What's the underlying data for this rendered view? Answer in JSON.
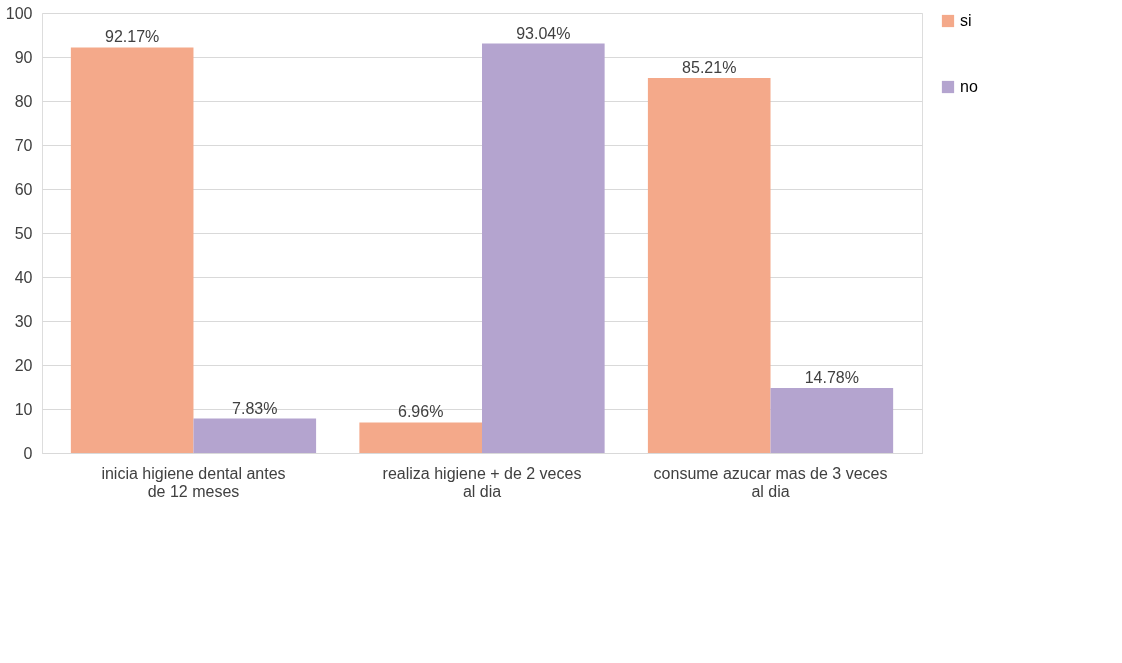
{
  "chart_data": {
    "type": "bar",
    "categories": [
      "inicia higiene dental  antes de 12 meses",
      "realiza higiene + de 2 veces al dia",
      "consume azucar mas de 3 veces al dia"
    ],
    "series": [
      {
        "name": "si",
        "color": "#f4a98a",
        "values": [
          92.17,
          6.96,
          85.21
        ],
        "value_labels": [
          "92.17%",
          "6.96%",
          "85.21%"
        ]
      },
      {
        "name": "no",
        "color": "#b4a4cf",
        "values": [
          7.83,
          93.04,
          14.78
        ],
        "value_labels": [
          "7.83%",
          "93.04%",
          "14.78%"
        ]
      }
    ],
    "ylim": [
      0,
      100
    ],
    "yticks": [
      0,
      10,
      20,
      30,
      40,
      50,
      60,
      70,
      80,
      90,
      100
    ],
    "grid": "y",
    "legend": "right"
  }
}
